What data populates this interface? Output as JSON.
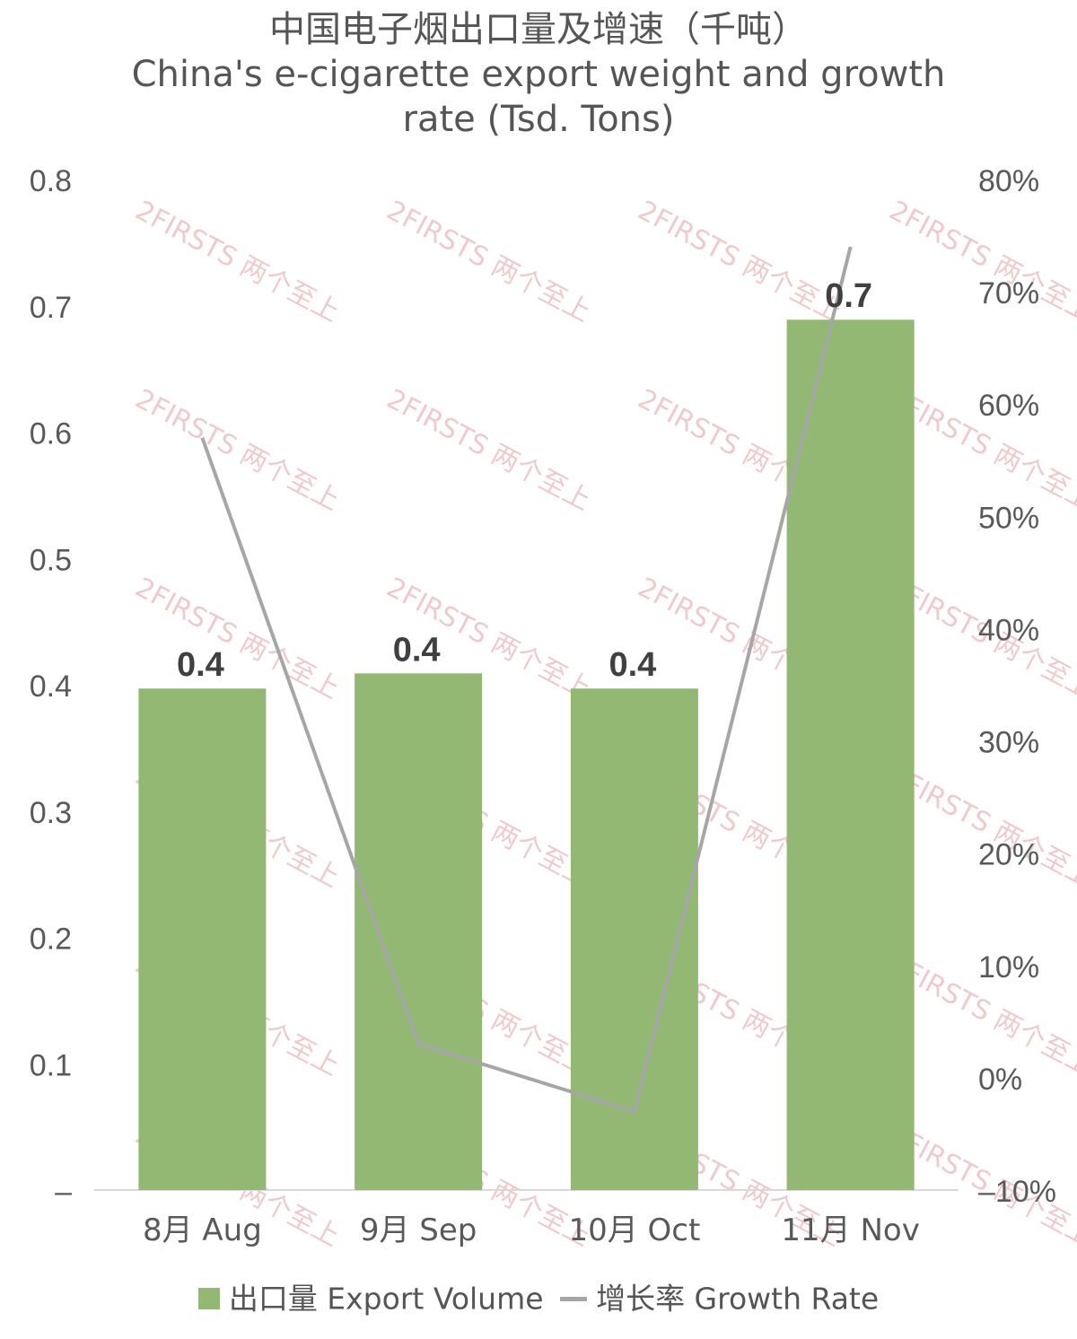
{
  "watermark": {
    "text": "2FIRSTS 两个至上",
    "color": "#e8b4b8"
  },
  "chart_data": {
    "type": "bar",
    "title": [
      "中国电子烟出口量及增速（千吨）",
      "China's e-cigarette export weight and growth",
      "rate (Tsd. Tons)"
    ],
    "categories": [
      "8月 Aug",
      "9月 Sep",
      "10月 Oct",
      "11月 Nov"
    ],
    "series": [
      {
        "name": "出口量 Export Volume",
        "type": "bar",
        "axis": "left",
        "color": "#93b874",
        "values": [
          0.397,
          0.409,
          0.397,
          0.689
        ],
        "data_labels": [
          "0.4",
          "0.4",
          "0.4",
          "0.7"
        ]
      },
      {
        "name": "增长率 Growth Rate",
        "type": "line",
        "axis": "right",
        "color": "#a6a6a6",
        "values": [
          57,
          3,
          -3,
          74
        ]
      }
    ],
    "y_left": {
      "min": 0,
      "max": 0.8,
      "ticks": [
        0,
        0.1,
        0.2,
        0.3,
        0.4,
        0.5,
        0.6,
        0.7,
        0.8
      ],
      "tick_labels": [
        "–",
        "0.1",
        "0.2",
        "0.3",
        "0.4",
        "0.5",
        "0.6",
        "0.7",
        "0.8"
      ]
    },
    "y_right": {
      "min": -10,
      "max": 80,
      "ticks": [
        -10,
        0,
        10,
        20,
        30,
        40,
        50,
        60,
        70,
        80
      ],
      "tick_labels": [
        "–10%",
        "0%",
        "10%",
        "20%",
        "30%",
        "40%",
        "50%",
        "60%",
        "70%",
        "80%"
      ]
    },
    "grid": false,
    "legend": "bottom"
  }
}
